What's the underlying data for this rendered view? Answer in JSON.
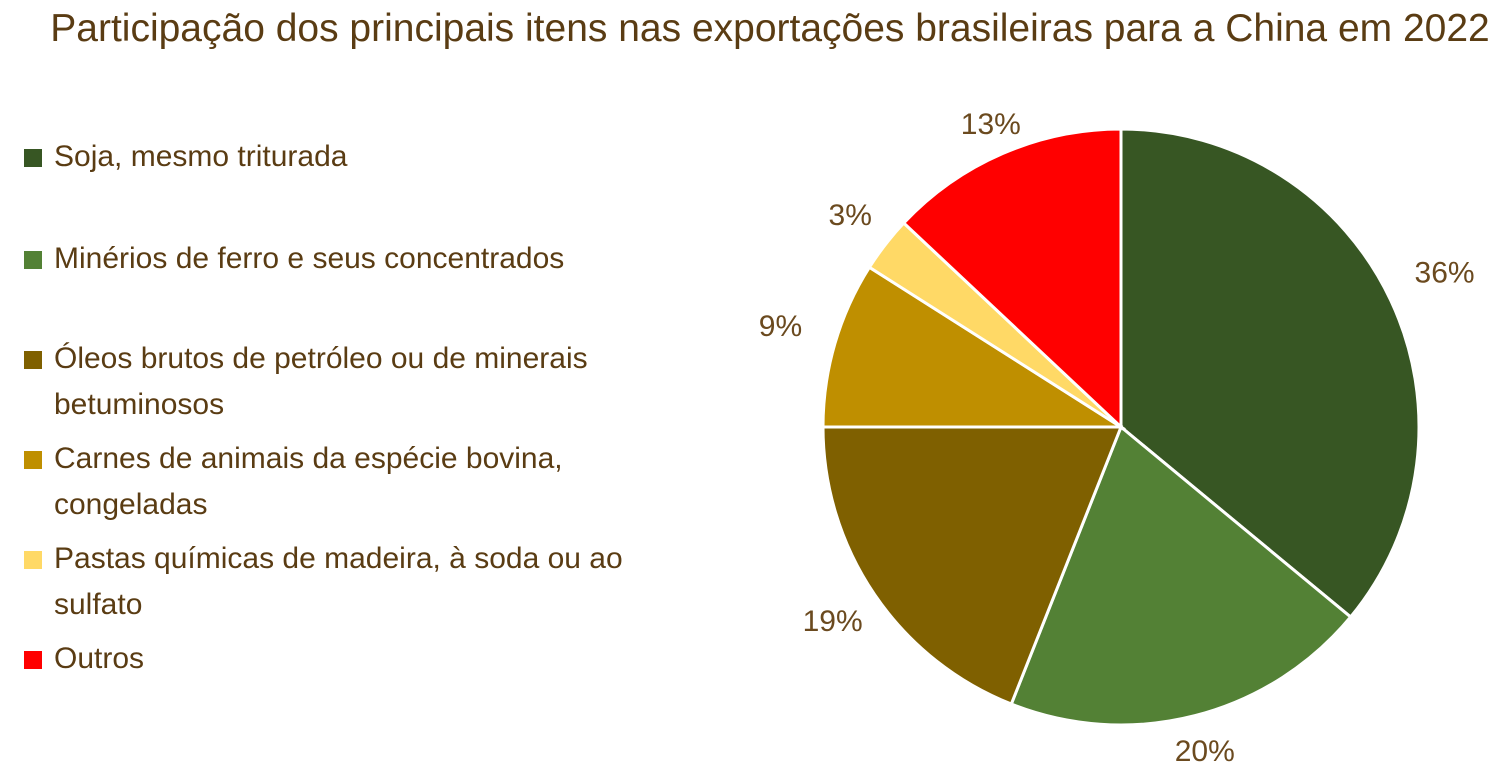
{
  "chart_data": {
    "type": "pie",
    "title": "Participação dos principais itens nas exportações brasileiras para a China em 2022",
    "legend_position": "left",
    "series": [
      {
        "name": "",
        "values": [
          36,
          20,
          19,
          9,
          3,
          13
        ]
      }
    ],
    "categories": [
      "Soja, mesmo triturada",
      "Minérios de ferro e seus concentrados",
      "Óleos brutos de petróleo ou de minerais betuminosos",
      "Carnes de animais da espécie bovina, congeladas",
      "Pastas químicas de madeira, à soda ou ao sulfato",
      "Outros"
    ],
    "data_labels": [
      "36%",
      "20%",
      "19%",
      "9%",
      "3%",
      "13%"
    ],
    "colors": [
      "#375623",
      "#538135",
      "#7f6000",
      "#bf8f00",
      "#ffd966",
      "#ff0000"
    ]
  }
}
